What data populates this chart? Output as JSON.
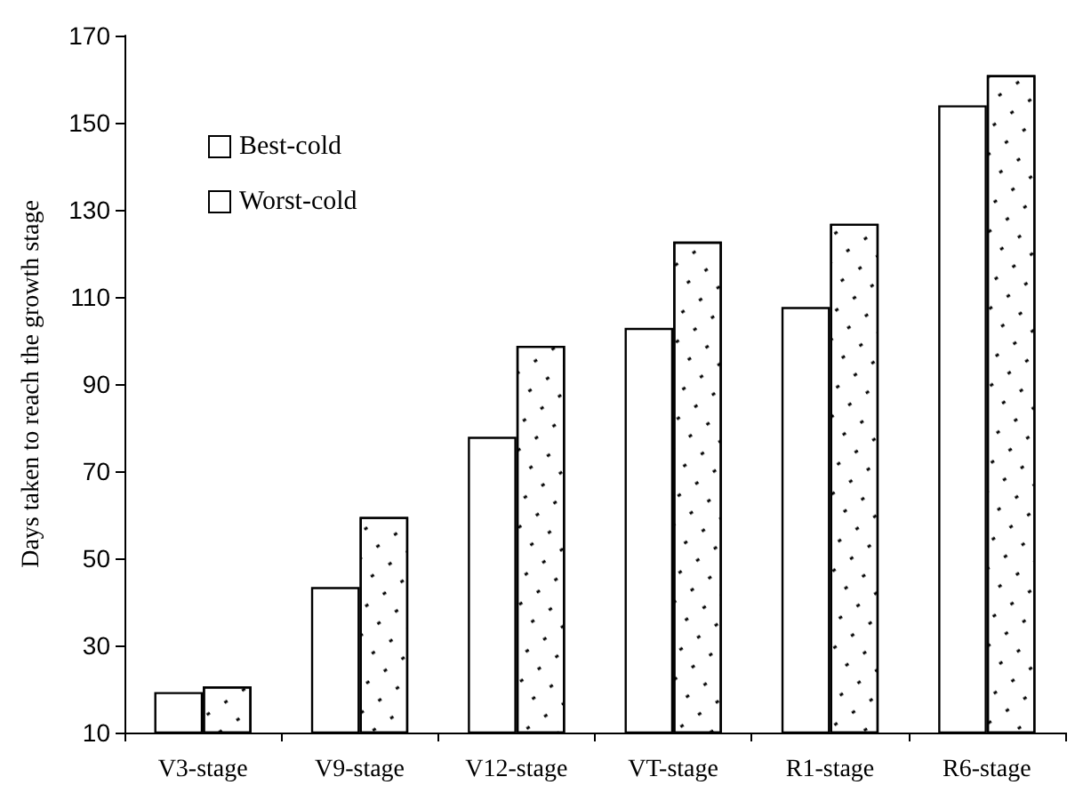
{
  "chart_data": {
    "type": "bar",
    "ylabel": "Days taken to reach the growth stage",
    "categories": [
      "V3-stage",
      "V9-stage",
      "V12-stage",
      "VT-stage",
      "R1-stage",
      "R6-stage"
    ],
    "series": [
      {
        "name": "Best-cold",
        "color": "#ffffff",
        "values": [
          19.3,
          43.4,
          77.9,
          102.9,
          107.7,
          154
        ]
      },
      {
        "name": "Worst-cold",
        "color": "#ffffff",
        "values": [
          20.6,
          59.5,
          98.8,
          122.7,
          126.8,
          160.9
        ]
      }
    ],
    "ylim": [
      10,
      170
    ],
    "yticks": [
      10,
      30,
      50,
      70,
      90,
      110,
      130,
      150,
      170
    ],
    "grid": false,
    "legend": "top left"
  }
}
